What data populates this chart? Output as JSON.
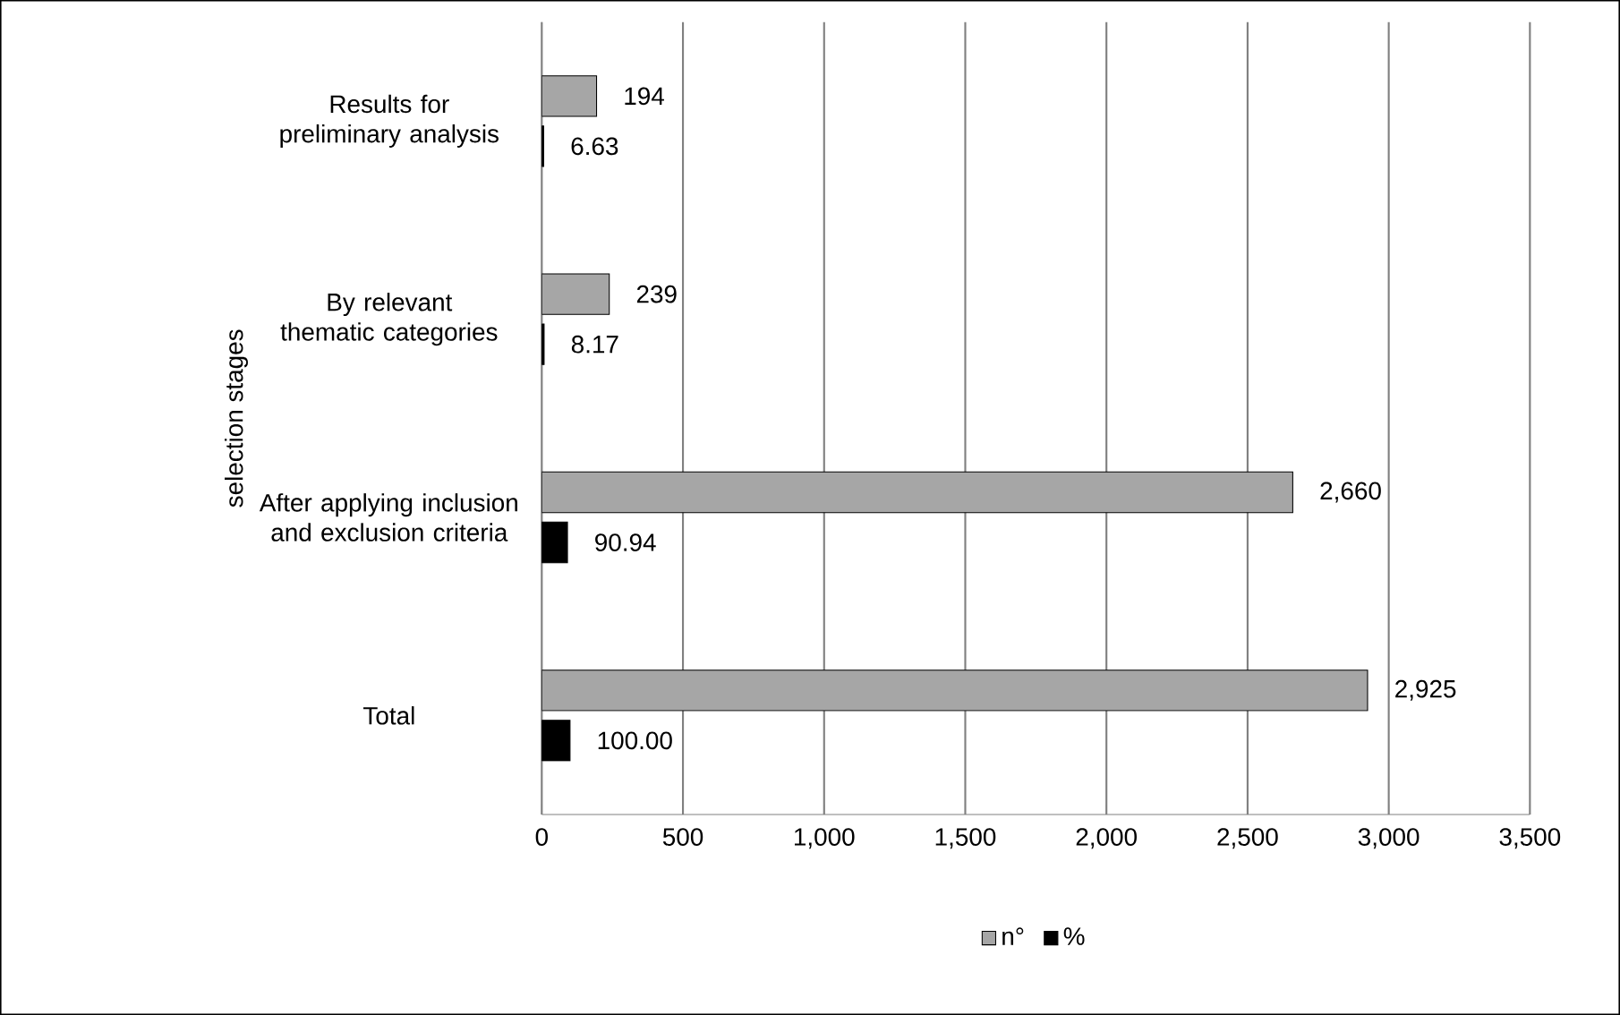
{
  "chart_data": {
    "type": "bar",
    "orientation": "horizontal",
    "ylabel": "selection stages",
    "categories": [
      "Results for preliminary analysis",
      "By relevant thematic categories",
      "After applying inclusion and exclusion criteria",
      "Total"
    ],
    "series": [
      {
        "name": "n°",
        "color": "#a6a6a6",
        "values": [
          194,
          239,
          2660,
          2925
        ],
        "value_labels": [
          "194",
          "239",
          "2,660",
          "2,925"
        ]
      },
      {
        "name": "%",
        "color": "#000000",
        "values": [
          6.63,
          8.17,
          90.94,
          100.0
        ],
        "value_labels": [
          "6.63",
          "8.17",
          "90.94",
          "100.00"
        ]
      }
    ],
    "xlim": [
      0,
      3500
    ],
    "xticks": [
      0,
      500,
      {
        "value": 1000,
        "label": "1,000"
      },
      {
        "value": 1500,
        "label": "1,500"
      },
      {
        "value": 2000,
        "label": "2,000"
      },
      {
        "value": 2500,
        "label": "2,500"
      },
      {
        "value": 3000,
        "label": "3,000"
      },
      {
        "value": 3500,
        "label": "3,500"
      }
    ],
    "grid": "x",
    "legend": "bottom"
  }
}
